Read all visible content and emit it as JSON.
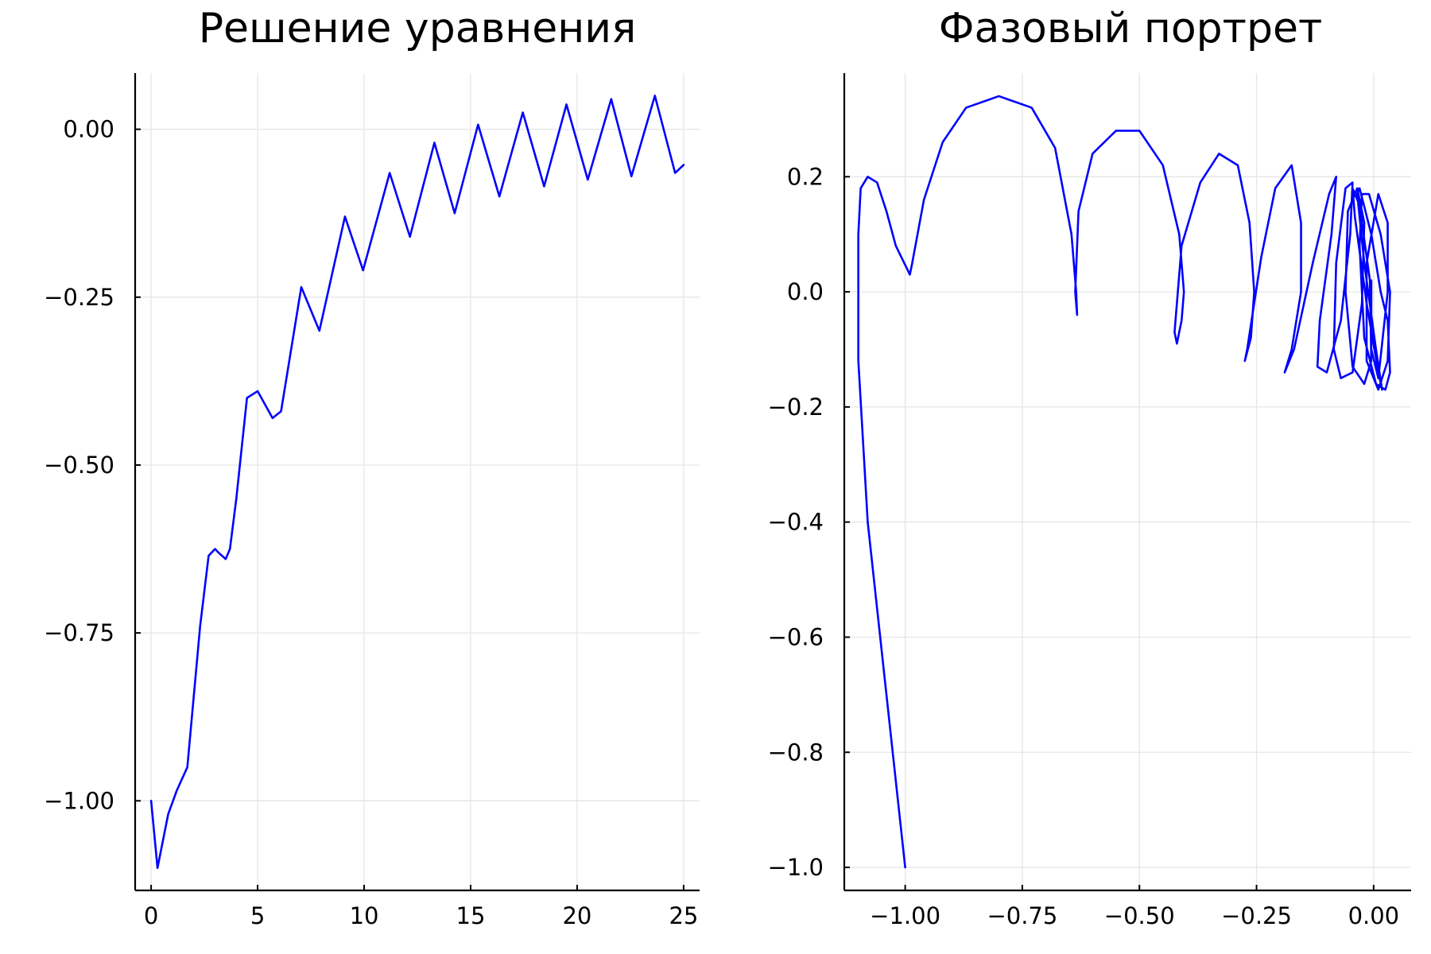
{
  "chart_data": [
    {
      "type": "line",
      "title": "Решение уравнения",
      "xlabel": "",
      "ylabel": "",
      "xlim": [
        -0.75,
        25.75
      ],
      "ylim": [
        -1.1334,
        0.0836
      ],
      "grid": true,
      "legend": "none",
      "x_ticks": [
        0,
        5,
        10,
        15,
        20,
        25
      ],
      "x_tick_labels": [
        "0",
        "5",
        "10",
        "15",
        "20",
        "25"
      ],
      "y_ticks": [
        0.0,
        -0.25,
        -0.5,
        -0.75,
        -1.0
      ],
      "y_tick_labels": [
        "0.00",
        "−0.25",
        "−0.50",
        "−0.75",
        "−1.00"
      ],
      "series": [
        {
          "color": "#0000ff",
          "x": [
            0,
            0.3,
            0.8,
            1.2,
            1.7,
            2.3,
            2.7,
            3.0,
            3.15,
            3.5,
            3.7,
            4.0,
            4.5,
            5.0,
            5.7,
            6.1,
            7.05,
            7.9,
            9.1,
            9.95,
            11.2,
            12.15,
            13.3,
            14.25,
            15.35,
            16.35,
            17.45,
            18.45,
            19.5,
            20.5,
            21.6,
            22.55,
            23.65,
            24.6,
            25.0
          ],
          "y": [
            -1.0,
            -1.1,
            -1.02,
            -0.985,
            -0.95,
            -0.74,
            -0.635,
            -0.625,
            -0.63,
            -0.64,
            -0.625,
            -0.55,
            -0.4,
            -0.39,
            -0.43,
            -0.42,
            -0.235,
            -0.3,
            -0.13,
            -0.21,
            -0.065,
            -0.16,
            -0.02,
            -0.125,
            0.007,
            -0.1,
            0.025,
            -0.085,
            0.037,
            -0.075,
            0.045,
            -0.07,
            0.05,
            -0.065,
            -0.053
          ]
        }
      ]
    },
    {
      "type": "line",
      "title": "Фазовый портрет",
      "xlabel": "",
      "ylabel": "",
      "xlim": [
        -1.13,
        0.08
      ],
      "ylim": [
        -1.04,
        0.38
      ],
      "grid": true,
      "legend": "none",
      "x_ticks": [
        -1.0,
        -0.75,
        -0.5,
        -0.25,
        0.0
      ],
      "x_tick_labels": [
        "−1.00",
        "−0.75",
        "−0.50",
        "−0.25",
        "0.00"
      ],
      "y_ticks": [
        0.2,
        0.0,
        -0.2,
        -0.4,
        -0.6,
        -0.8,
        -1.0
      ],
      "y_tick_labels": [
        "0.2",
        "0.0",
        "−0.2",
        "−0.4",
        "−0.6",
        "−0.8",
        "−1.0"
      ],
      "series": [
        {
          "color": "#0000ff",
          "x": [
            -1.0,
            -1.04,
            -1.08,
            -1.1,
            -1.1,
            -1.095,
            -1.08,
            -1.06,
            -1.04,
            -1.02,
            -0.99,
            -0.985,
            -0.96,
            -0.92,
            -0.87,
            -0.8,
            -0.73,
            -0.68,
            -0.645,
            -0.635,
            -0.633,
            -0.637,
            -0.63,
            -0.6,
            -0.55,
            -0.5,
            -0.45,
            -0.415,
            -0.405,
            -0.41,
            -0.42,
            -0.425,
            -0.41,
            -0.37,
            -0.33,
            -0.29,
            -0.265,
            -0.255,
            -0.262,
            -0.275,
            -0.27,
            -0.24,
            -0.21,
            -0.175,
            -0.155,
            -0.155,
            -0.175,
            -0.19,
            -0.17,
            -0.13,
            -0.095,
            -0.08,
            -0.09,
            -0.115,
            -0.12,
            -0.1,
            -0.07,
            -0.05,
            -0.045,
            -0.06,
            -0.08,
            -0.085,
            -0.07,
            -0.045,
            -0.025,
            -0.02,
            -0.035,
            -0.055,
            -0.06,
            -0.045,
            -0.02,
            -0.005,
            -0.008,
            -0.03,
            -0.045,
            -0.04,
            -0.015,
            0.01,
            0.018,
            0.005,
            -0.02,
            -0.035,
            -0.03,
            -0.005,
            0.015,
            0.03,
            0.035,
            0.025,
            0.005,
            -0.02,
            -0.03,
            -0.025,
            -0.01,
            0.015,
            0.035,
            0.03,
            0.01,
            -0.015,
            -0.015,
            0.01,
            0.03,
            0.03,
            0.01,
            -0.005,
            -0.005
          ],
          "y": [
            -1.0,
            -0.7,
            -0.4,
            -0.12,
            0.1,
            0.18,
            0.2,
            0.19,
            0.14,
            0.08,
            0.03,
            0.05,
            0.16,
            0.26,
            0.32,
            0.34,
            0.32,
            0.25,
            0.1,
            0.0,
            -0.04,
            0.0,
            0.14,
            0.24,
            0.28,
            0.28,
            0.22,
            0.1,
            0.0,
            -0.05,
            -0.09,
            -0.07,
            0.08,
            0.19,
            0.24,
            0.22,
            0.12,
            0.0,
            -0.08,
            -0.12,
            -0.1,
            0.06,
            0.18,
            0.22,
            0.12,
            0.0,
            -0.1,
            -0.14,
            -0.1,
            0.05,
            0.17,
            0.2,
            0.1,
            -0.05,
            -0.13,
            -0.14,
            -0.05,
            0.1,
            0.19,
            0.18,
            0.05,
            -0.1,
            -0.15,
            -0.14,
            -0.02,
            0.12,
            0.18,
            0.14,
            0.0,
            -0.13,
            -0.16,
            -0.12,
            0.02,
            0.15,
            0.18,
            0.13,
            -0.02,
            -0.14,
            -0.17,
            -0.1,
            0.05,
            0.17,
            0.18,
            0.1,
            0.0,
            -0.05,
            -0.14,
            -0.17,
            -0.16,
            -0.08,
            0.08,
            0.17,
            0.17,
            0.1,
            0.0,
            -0.12,
            -0.17,
            -0.12,
            0.05,
            0.17,
            0.12,
            0.0,
            -0.15,
            -0.1,
            0.02
          ]
        }
      ]
    }
  ]
}
